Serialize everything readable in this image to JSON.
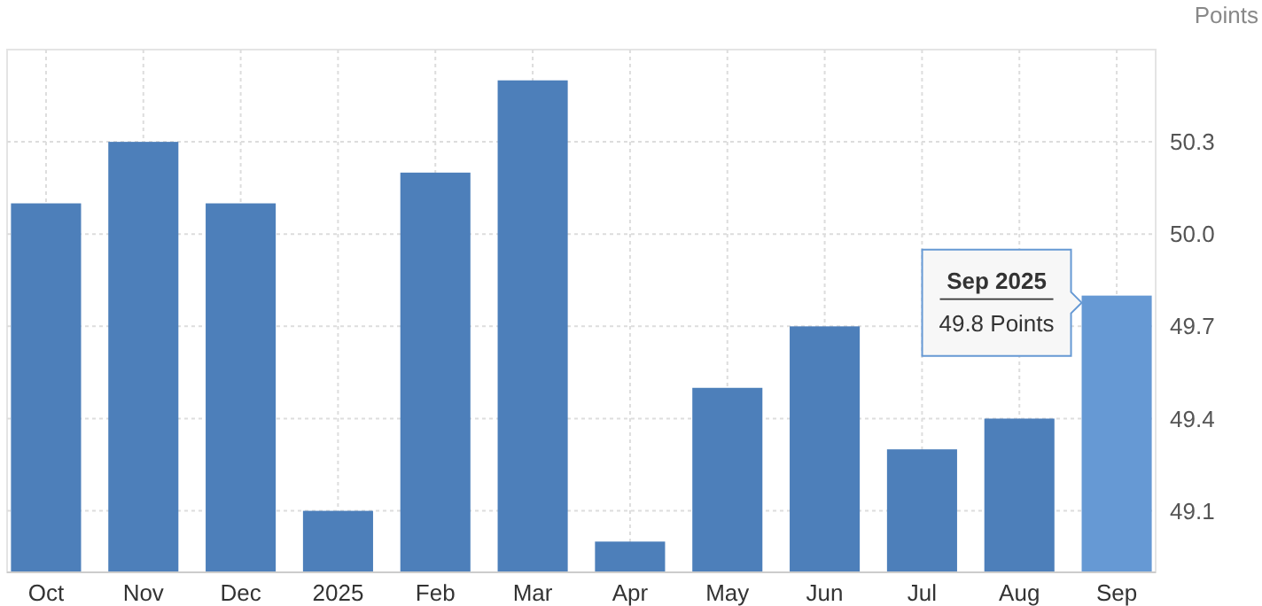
{
  "chart_data": {
    "type": "bar",
    "ylabel": "Points",
    "categories": [
      "Oct",
      "Nov",
      "Dec",
      "2025",
      "Feb",
      "Mar",
      "Apr",
      "May",
      "Jun",
      "Jul",
      "Aug",
      "Sep"
    ],
    "values": [
      50.1,
      50.3,
      50.1,
      49.1,
      50.2,
      50.5,
      49.0,
      49.5,
      49.7,
      49.3,
      49.4,
      49.8
    ],
    "colors": [
      "#4d7fba",
      "#4d7fba",
      "#4d7fba",
      "#4d7fba",
      "#4d7fba",
      "#4d7fba",
      "#4d7fba",
      "#4d7fba",
      "#4d7fba",
      "#4d7fba",
      "#4d7fba",
      "#6699d4"
    ],
    "ylim": [
      48.9,
      50.6
    ],
    "yticks": [
      49.1,
      49.4,
      49.7,
      {
        "value": 50.0,
        "label": "50.0"
      },
      50.3
    ],
    "grid": true,
    "annotations": [
      "Sep 2025",
      "49.8 Points"
    ]
  }
}
